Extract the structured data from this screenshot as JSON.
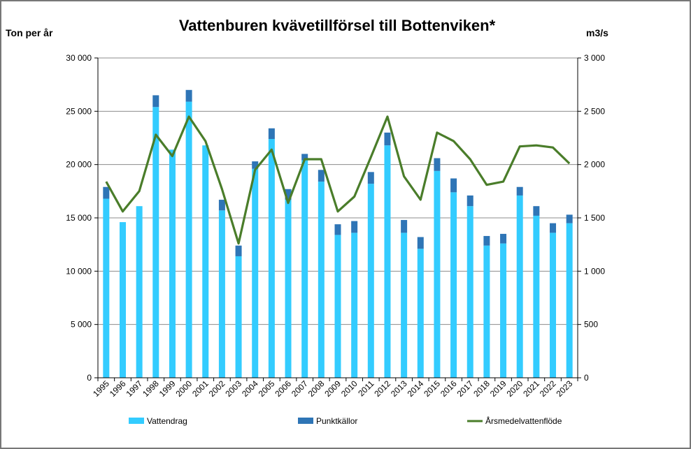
{
  "chart_data": {
    "type": "bar",
    "title": "Vattenburen kvävetillförsel till Bottenviken*",
    "ylabel_left": "Ton per år",
    "ylabel_right": "m3/s",
    "ylim_left": [
      0,
      30000
    ],
    "ylim_right": [
      0,
      3000
    ],
    "yticks_left": [
      "0",
      "5 000",
      "10 000",
      "15 000",
      "20 000",
      "25 000",
      "30 000"
    ],
    "yticks_right": [
      "0",
      "500",
      "1 000",
      "1 500",
      "2 000",
      "2 500",
      "3 000"
    ],
    "grid": true,
    "legend_position": "bottom",
    "categories": [
      "1995",
      "1996",
      "1997",
      "1998",
      "1999",
      "2000",
      "2001",
      "2002",
      "2003",
      "2004",
      "2005",
      "2006",
      "2007",
      "2008",
      "2009",
      "2010",
      "2011",
      "2012",
      "2013",
      "2014",
      "2015",
      "2016",
      "2017",
      "2018",
      "2019",
      "2020",
      "2021",
      "2022",
      "2023"
    ],
    "series": [
      {
        "name": "Vattendrag",
        "kind": "bar-stacked",
        "axis": "left",
        "color": "#33ccff",
        "values": [
          16800,
          14600,
          16100,
          25400,
          21400,
          25900,
          21800,
          15700,
          11400,
          19600,
          22400,
          16700,
          20400,
          18400,
          13400,
          13600,
          18200,
          21800,
          13600,
          12100,
          19400,
          17400,
          16100,
          12400,
          12600,
          17100,
          15200,
          13600,
          14500
        ]
      },
      {
        "name": "Punktkällor",
        "kind": "bar-stacked",
        "axis": "left",
        "color": "#2e75b6",
        "values": [
          1100,
          0,
          0,
          1100,
          0,
          1100,
          0,
          1000,
          1000,
          700,
          1000,
          1000,
          600,
          1100,
          1000,
          1100,
          1100,
          1200,
          1200,
          1100,
          1200,
          1300,
          1000,
          900,
          900,
          800,
          900,
          900,
          800
        ]
      },
      {
        "name": "Årsmedelvattenflöde",
        "kind": "line",
        "axis": "right",
        "color": "#4a7d2a",
        "values": [
          1840,
          1560,
          1750,
          2280,
          2080,
          2450,
          2220,
          1770,
          1260,
          1950,
          2140,
          1640,
          2050,
          2050,
          1560,
          1700,
          2070,
          2450,
          1890,
          1670,
          2300,
          2220,
          2050,
          1810,
          1840,
          2170,
          2180,
          2160,
          2010
        ]
      }
    ]
  }
}
